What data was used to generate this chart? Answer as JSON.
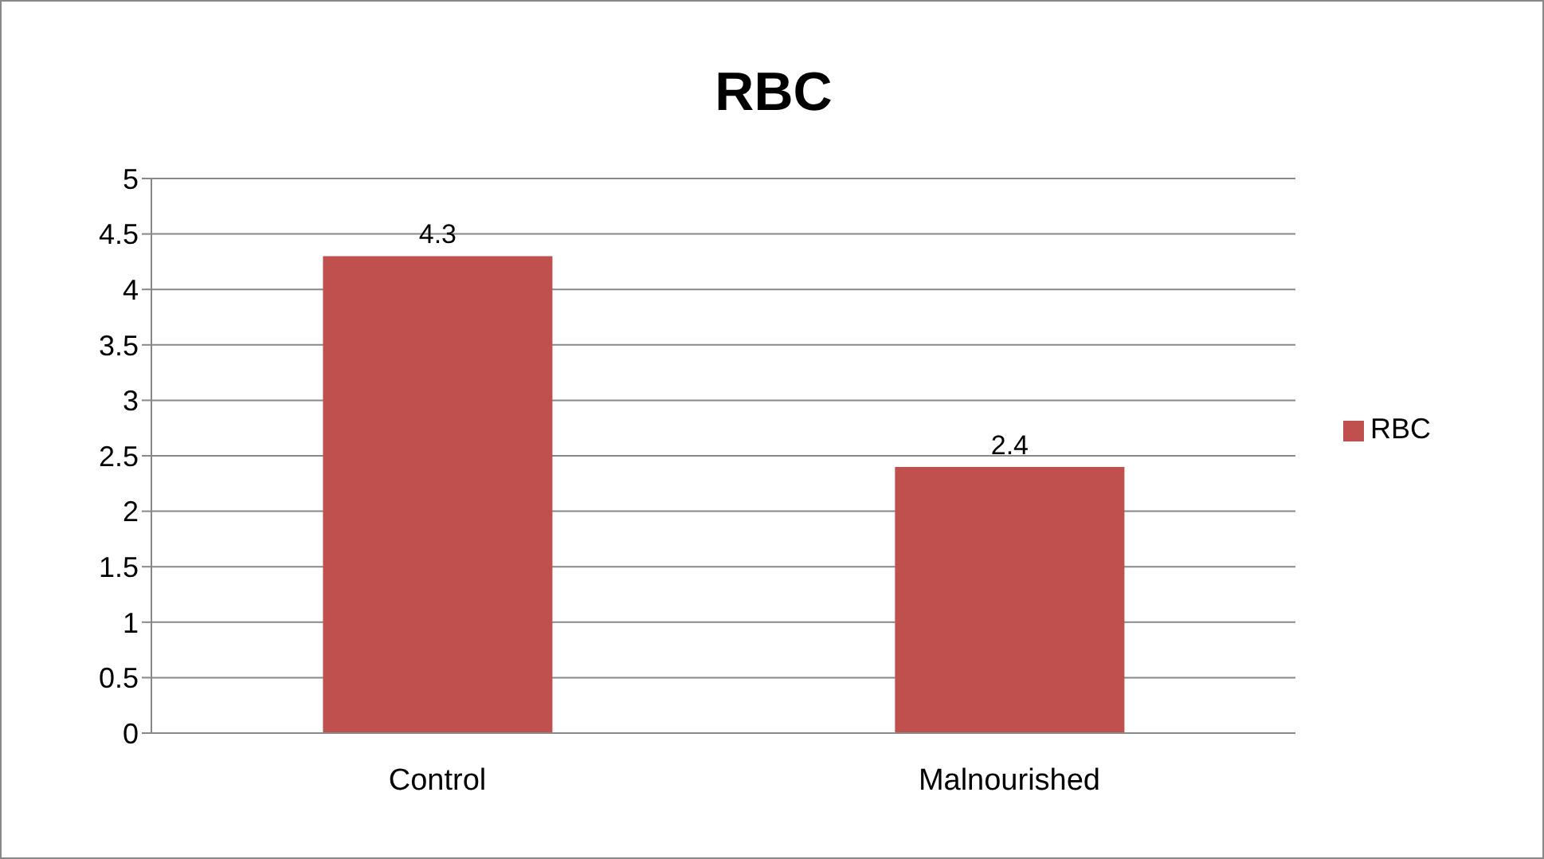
{
  "chart_data": {
    "type": "bar",
    "title": "RBC",
    "categories": [
      "Control",
      "Malnourished"
    ],
    "series": [
      {
        "name": "RBC",
        "color": "#c0504d",
        "values": [
          4.3,
          2.4
        ]
      }
    ],
    "ylim": [
      0,
      5
    ],
    "yticks": [
      0,
      0.5,
      1,
      1.5,
      2,
      2.5,
      3,
      3.5,
      4,
      4.5,
      5
    ],
    "grid": "y",
    "legend": "right",
    "data_labels": true
  }
}
